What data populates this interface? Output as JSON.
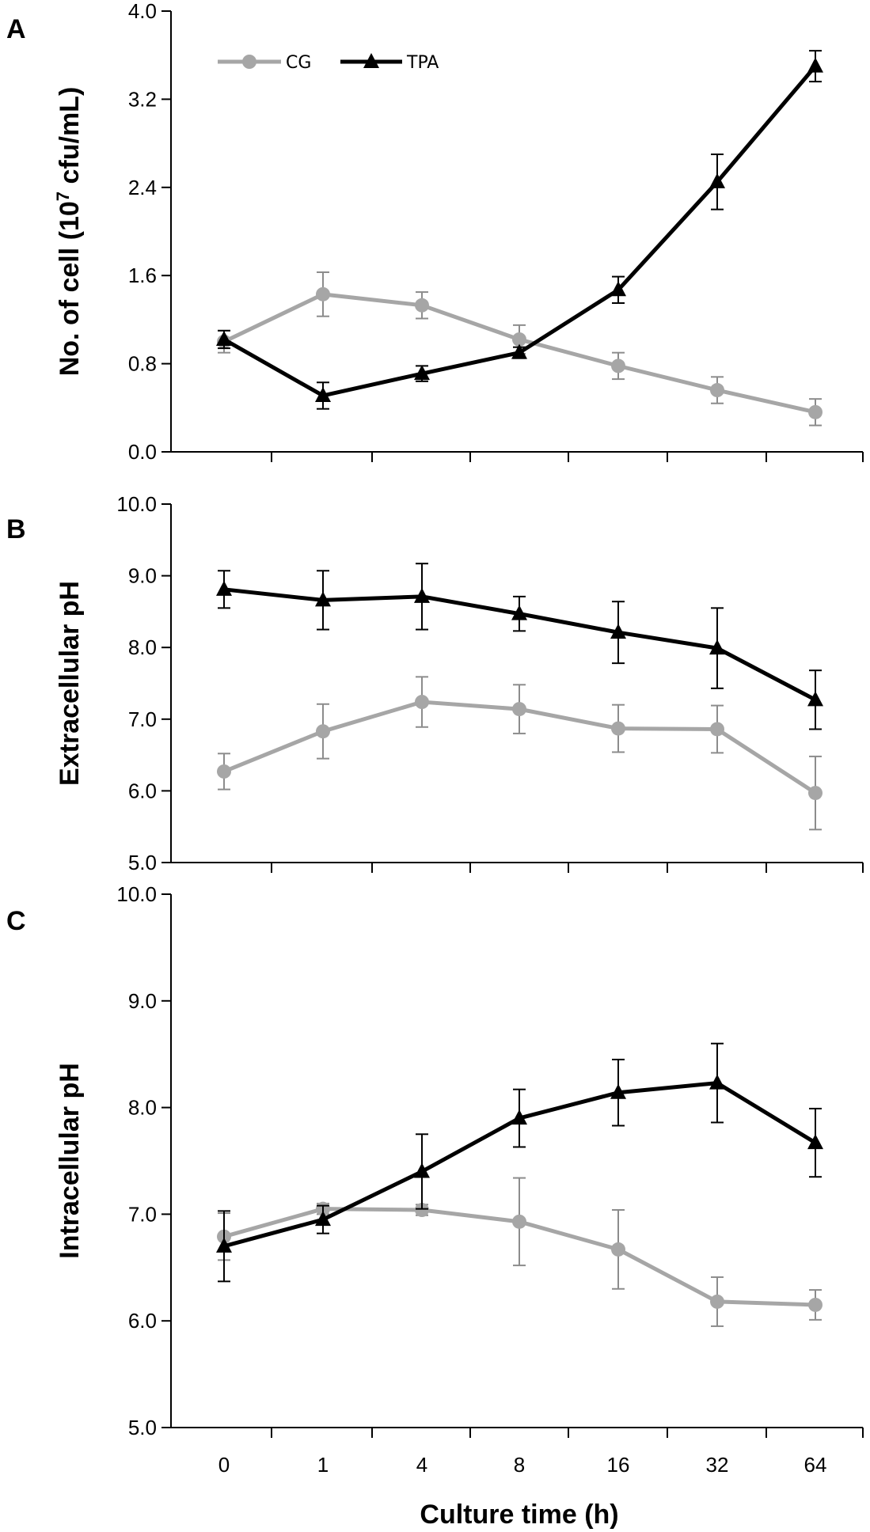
{
  "colors": {
    "CG": "#a6a6a6",
    "CG_err": "#8c8c8c",
    "TPA": "#000000"
  },
  "legend": [
    "CG",
    "TPA"
  ],
  "xlabel": "Culture time (h)",
  "chart_data": [
    {
      "type": "line",
      "panel": "A",
      "ylabel_main": "No. of cell (10",
      "ylabel_sup": "7",
      "ylabel_tail": " cfu/mL)",
      "categories": [
        "0",
        "1",
        "4",
        "8",
        "16",
        "32",
        "64"
      ],
      "ylim": [
        0,
        4
      ],
      "yticks": [
        "0.0",
        "0.8",
        "1.6",
        "2.4",
        "3.2",
        "4.0"
      ],
      "series": [
        {
          "name": "CG",
          "values": [
            1.0,
            1.43,
            1.33,
            1.02,
            0.78,
            0.56,
            0.36
          ],
          "errors": [
            0.1,
            0.2,
            0.12,
            0.13,
            0.12,
            0.12,
            0.12
          ]
        },
        {
          "name": "TPA",
          "values": [
            1.02,
            0.51,
            0.71,
            0.9,
            1.47,
            2.45,
            3.5
          ],
          "errors": [
            0.08,
            0.12,
            0.07,
            0.05,
            0.12,
            0.25,
            0.14
          ]
        }
      ]
    },
    {
      "type": "line",
      "panel": "B",
      "ylabel_main": "Extracellular pH",
      "categories": [
        "0",
        "1",
        "4",
        "8",
        "16",
        "32",
        "64"
      ],
      "ylim": [
        5,
        10
      ],
      "yticks": [
        "5.0",
        "6.0",
        "7.0",
        "8.0",
        "9.0",
        "10.0"
      ],
      "series": [
        {
          "name": "CG",
          "values": [
            6.27,
            6.83,
            7.24,
            7.14,
            6.87,
            6.86,
            5.97
          ],
          "errors": [
            0.25,
            0.38,
            0.35,
            0.34,
            0.33,
            0.33,
            0.51
          ]
        },
        {
          "name": "TPA",
          "values": [
            8.81,
            8.66,
            8.71,
            8.47,
            8.21,
            7.99,
            7.27
          ],
          "errors": [
            0.26,
            0.41,
            0.46,
            0.24,
            0.43,
            0.56,
            0.41
          ]
        }
      ]
    },
    {
      "type": "line",
      "panel": "C",
      "ylabel_main": "Intracellular pH",
      "categories": [
        "0",
        "1",
        "4",
        "8",
        "16",
        "32",
        "64"
      ],
      "ylim": [
        5,
        10
      ],
      "yticks": [
        "5.0",
        "6.0",
        "7.0",
        "8.0",
        "9.0",
        "10.0"
      ],
      "series": [
        {
          "name": "CG",
          "values": [
            6.79,
            7.05,
            7.04,
            6.93,
            6.67,
            6.18,
            6.15
          ],
          "errors": [
            0.22,
            0.05,
            0.05,
            0.41,
            0.37,
            0.23,
            0.14
          ]
        },
        {
          "name": "TPA",
          "values": [
            6.7,
            6.95,
            7.4,
            7.9,
            8.14,
            8.23,
            7.67
          ],
          "errors": [
            0.33,
            0.13,
            0.35,
            0.27,
            0.31,
            0.37,
            0.32
          ]
        }
      ]
    }
  ]
}
